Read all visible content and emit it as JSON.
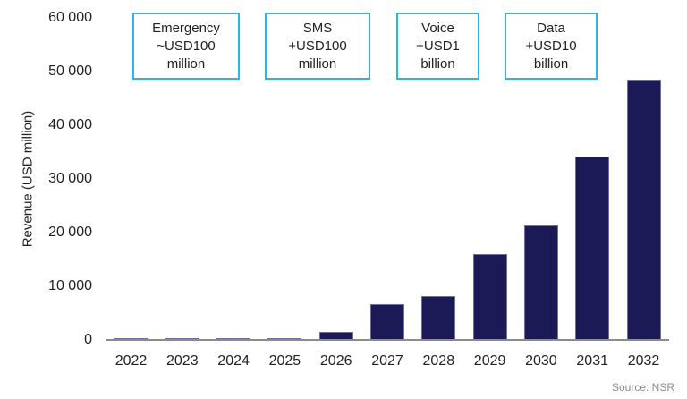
{
  "chart_data": {
    "type": "bar",
    "title": "",
    "xlabel": "",
    "ylabel": "Revenue (USD million)",
    "ylim": [
      0,
      60000
    ],
    "yticks": [
      "0",
      "10 000",
      "20 000",
      "30 000",
      "40 000",
      "50 000",
      "60 000"
    ],
    "grid": false,
    "legend": null,
    "categories": [
      "2022",
      "2023",
      "2024",
      "2025",
      "2026",
      "2027",
      "2028",
      "2029",
      "2030",
      "2031",
      "2032"
    ],
    "values": [
      100,
      100,
      100,
      300,
      1500,
      6700,
      8100,
      16000,
      21300,
      34100,
      48500
    ],
    "bar_color": "#1b1a57",
    "annotations": [
      {
        "lines": [
          "Emergency",
          "~USD100",
          "million"
        ]
      },
      {
        "lines": [
          "SMS",
          "+USD100",
          "million"
        ]
      },
      {
        "lines": [
          "Voice",
          "+USD1",
          "billion"
        ]
      },
      {
        "lines": [
          "Data",
          "+USD10",
          "billion"
        ]
      }
    ],
    "source": "Source: NSR"
  }
}
